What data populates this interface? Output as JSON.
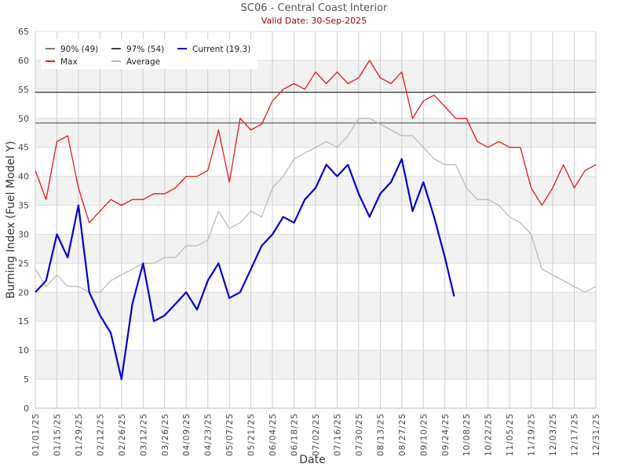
{
  "chart_data": {
    "type": "line",
    "title": "SC06 - Central Coast Interior",
    "subtitle": "Valid Date: 30-Sep-2025",
    "xlabel": "Date",
    "ylabel": "Burning Index (Fuel Model Y)",
    "ylim": [
      0,
      65
    ],
    "yticks": [
      0,
      5,
      10,
      15,
      20,
      25,
      30,
      35,
      40,
      45,
      50,
      55,
      60,
      65
    ],
    "xticks": [
      "01/01/25",
      "01/15/25",
      "01/29/25",
      "02/12/25",
      "02/26/25",
      "03/12/25",
      "03/26/25",
      "04/09/25",
      "04/23/25",
      "05/07/25",
      "05/21/25",
      "06/04/25",
      "06/18/25",
      "07/02/25",
      "07/16/25",
      "07/30/25",
      "08/13/25",
      "08/27/25",
      "09/10/25",
      "09/24/25",
      "10/08/25",
      "10/22/25",
      "11/05/25",
      "11/19/25",
      "12/03/25",
      "12/17/25",
      "12/31/25"
    ],
    "x_step_days": 7,
    "legend": {
      "placement": "top-left",
      "entries": [
        "90% (49)",
        "97% (54)",
        "Current (19.3)",
        "Max",
        "Average"
      ]
    },
    "grid": true,
    "thresholds": [
      {
        "name": "90%",
        "value": 49.2,
        "color": "#777777"
      },
      {
        "name": "97%",
        "value": 54.5,
        "color": "#444444"
      }
    ],
    "series": [
      {
        "name": "Max",
        "color": "#e31a1c",
        "values": [
          41,
          36,
          46,
          47,
          38,
          32,
          34,
          36,
          35,
          36,
          36,
          37,
          37,
          38,
          40,
          40,
          41,
          48,
          39,
          50,
          48,
          49,
          53,
          55,
          56,
          55,
          58,
          56,
          58,
          56,
          57,
          60,
          57,
          56,
          58,
          50,
          53,
          54,
          52,
          50,
          50,
          46,
          45,
          46,
          45,
          45,
          38,
          35,
          38,
          42,
          38,
          41,
          42
        ]
      },
      {
        "name": "Average",
        "color": "#bbbbbb",
        "values": [
          24,
          21,
          23,
          21,
          21,
          20,
          20,
          22,
          23,
          24,
          25,
          25,
          26,
          26,
          28,
          28,
          29,
          34,
          31,
          32,
          34,
          33,
          38,
          40,
          43,
          44,
          45,
          46,
          45,
          47,
          50,
          50,
          49,
          48,
          47,
          47,
          45,
          43,
          42,
          42,
          38,
          36,
          36,
          35,
          33,
          32,
          30,
          24,
          23,
          22,
          21,
          20,
          21
        ]
      },
      {
        "name": "Current (19.3)",
        "color": "#0000cc",
        "values": [
          20,
          22,
          30,
          26,
          35,
          20,
          16,
          13,
          5,
          18,
          25,
          15,
          16,
          18,
          20,
          17,
          22,
          25,
          19,
          20,
          24,
          28,
          30,
          33,
          32,
          36,
          38,
          42,
          40,
          42,
          37,
          33,
          37,
          39,
          43,
          34,
          39,
          33,
          26,
          19.3
        ]
      }
    ]
  }
}
